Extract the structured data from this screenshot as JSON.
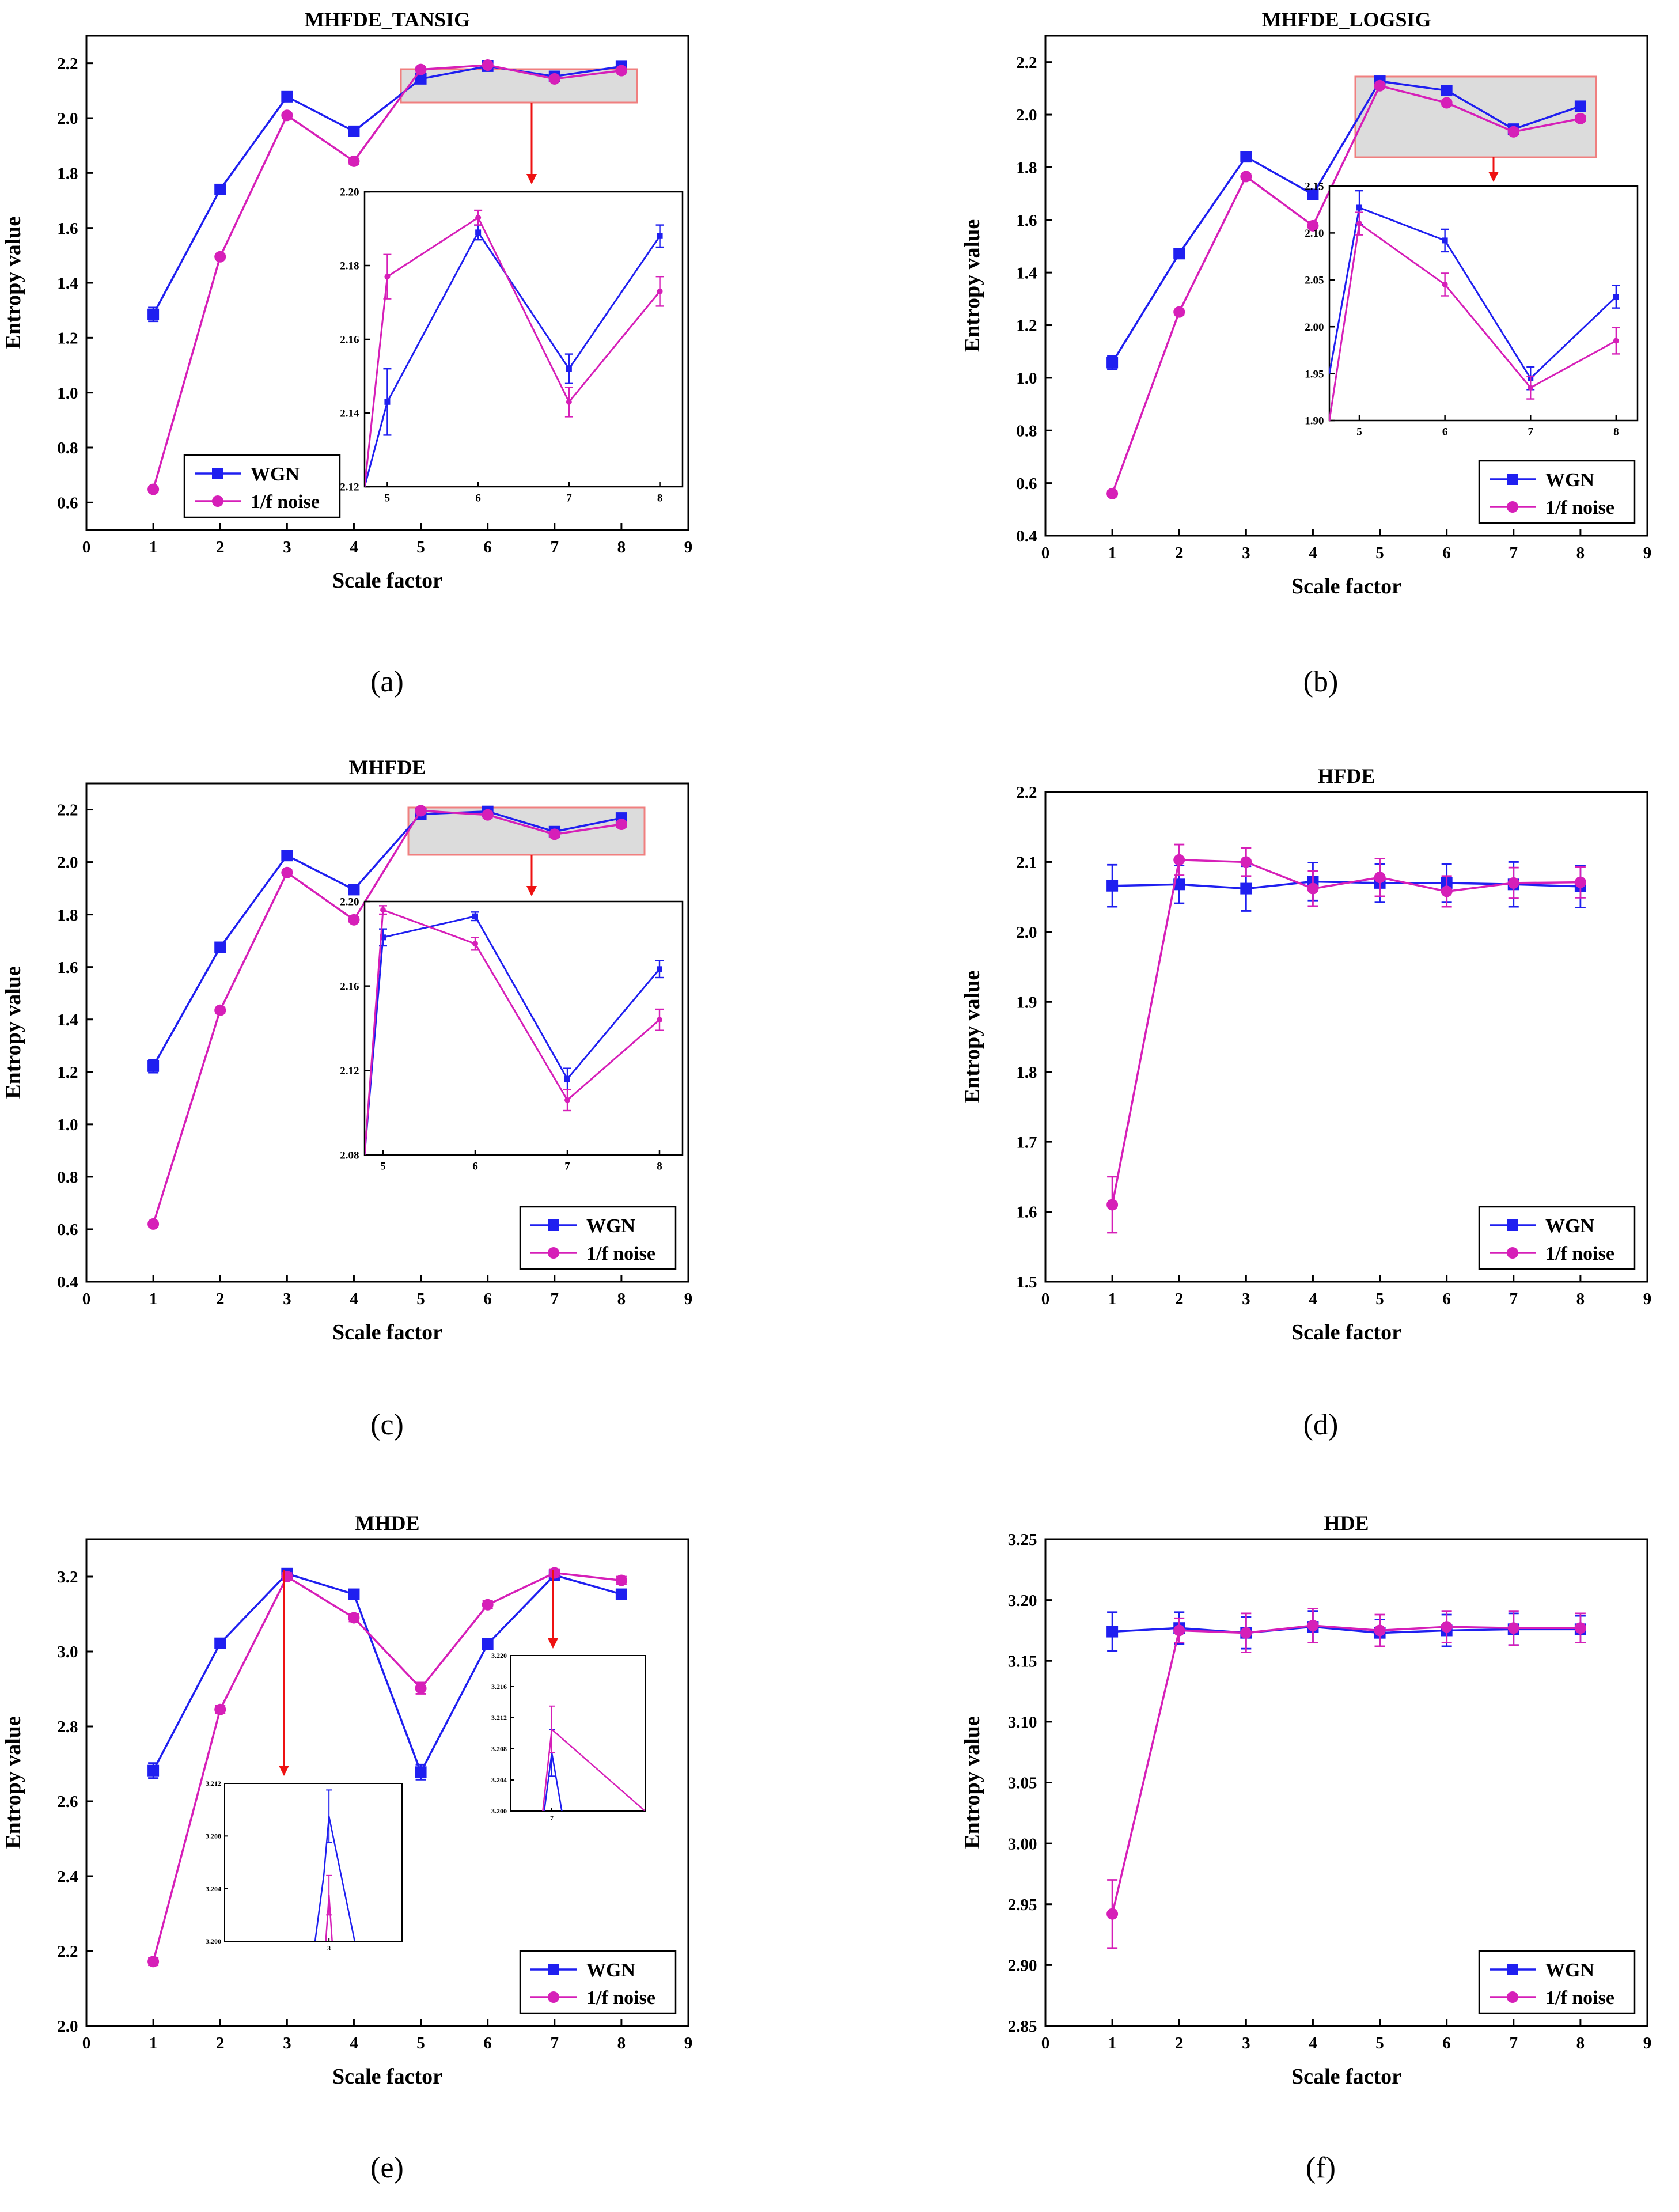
{
  "colors": {
    "wgn": "#1f1ff0",
    "pink": "#d61fb8",
    "axis": "#000000",
    "arrow": "#ee1111",
    "highlight_fill": "#dcdcdc",
    "highlight_stroke": "#f07f7f"
  },
  "legend_labels": [
    "WGN",
    "1/f noise"
  ],
  "chart_data": [
    {
      "id": "a",
      "caption": "(a)",
      "type": "line",
      "title": "MHFDE_TANSIG",
      "xlabel": "Scale factor",
      "ylabel": "Entropy value",
      "xlim": [
        0,
        9
      ],
      "xticks": [
        0,
        1,
        2,
        3,
        4,
        5,
        6,
        7,
        8,
        9
      ],
      "ylim": [
        0.5,
        2.3
      ],
      "yticks": [
        0.6,
        0.8,
        1.0,
        1.2,
        1.4,
        1.6,
        1.8,
        2.0,
        2.2
      ],
      "ydec": 1,
      "legend": "bottom-left",
      "series": [
        {
          "name": "WGN",
          "x": [
            1,
            2,
            3,
            4,
            5,
            6,
            7,
            8
          ],
          "values": [
            1.285,
            1.74,
            2.078,
            1.952,
            2.143,
            2.189,
            2.152,
            2.188
          ],
          "err": [
            0.025,
            0.018,
            0.01,
            0.01,
            0.01,
            0.005,
            0.005,
            0.005
          ]
        },
        {
          "name": "1/f noise",
          "x": [
            1,
            2,
            3,
            4,
            5,
            6,
            7,
            8
          ],
          "values": [
            0.648,
            1.495,
            2.01,
            1.843,
            2.177,
            2.193,
            2.143,
            2.173
          ],
          "err": [
            0.01,
            0.01,
            0.01,
            0.01,
            0.01,
            0.005,
            0.005,
            0.005
          ]
        }
      ],
      "inset": {
        "xlim": [
          4.75,
          8.25
        ],
        "xticks": [
          5,
          6,
          7,
          8
        ],
        "ylim": [
          2.12,
          2.2
        ],
        "yticks": [
          2.12,
          2.14,
          2.16,
          2.18,
          2.2
        ],
        "ydec": 2,
        "series": [
          {
            "name": "WGN",
            "x": [
              4.75,
              5,
              6,
              7,
              8
            ],
            "values": [
              2.12,
              2.143,
              2.189,
              2.152,
              2.188
            ],
            "err": [
              0,
              0.009,
              0.002,
              0.004,
              0.003
            ]
          },
          {
            "name": "1/f noise",
            "x": [
              4.75,
              5,
              6,
              7,
              8
            ],
            "values": [
              2.12,
              2.177,
              2.193,
              2.143,
              2.173
            ],
            "err": [
              0,
              0.006,
              0.002,
              0.004,
              0.004
            ]
          }
        ]
      }
    },
    {
      "id": "b",
      "caption": "(b)",
      "type": "line",
      "title": "MHFDE_LOGSIG",
      "xlabel": "Scale factor",
      "ylabel": "Entropy value",
      "xlim": [
        0,
        9
      ],
      "xticks": [
        0,
        1,
        2,
        3,
        4,
        5,
        6,
        7,
        8,
        9
      ],
      "ylim": [
        0.4,
        2.3
      ],
      "yticks": [
        0.4,
        0.6,
        0.8,
        1.0,
        1.2,
        1.4,
        1.6,
        1.8,
        2.0,
        2.2
      ],
      "ydec": 1,
      "legend": "bottom-right",
      "series": [
        {
          "name": "WGN",
          "x": [
            1,
            2,
            3,
            4,
            5,
            6,
            7,
            8
          ],
          "values": [
            1.058,
            1.472,
            1.84,
            1.697,
            2.127,
            2.092,
            1.945,
            2.032
          ],
          "err": [
            0.025,
            0.01,
            0.01,
            0.01,
            0.01,
            0.01,
            0.01,
            0.01
          ]
        },
        {
          "name": "1/f noise",
          "x": [
            1,
            2,
            3,
            4,
            5,
            6,
            7,
            8
          ],
          "values": [
            0.56,
            1.25,
            1.765,
            1.578,
            2.11,
            2.045,
            1.935,
            1.985
          ],
          "err": [
            0.01,
            0.01,
            0.01,
            0.01,
            0.01,
            0.01,
            0.01,
            0.01
          ]
        }
      ],
      "inset": {
        "xlim": [
          4.65,
          8.25
        ],
        "xticks": [
          5,
          6,
          7,
          8
        ],
        "ylim": [
          1.9,
          2.15
        ],
        "yticks": [
          1.9,
          1.95,
          2.0,
          2.05,
          2.1,
          2.15
        ],
        "ydec": 2,
        "series": [
          {
            "name": "WGN",
            "x": [
              4.65,
              5,
              6,
              7,
              8
            ],
            "values": [
              1.95,
              2.127,
              2.092,
              1.945,
              2.032
            ],
            "err": [
              0,
              0.018,
              0.012,
              0.012,
              0.012
            ]
          },
          {
            "name": "1/f noise",
            "x": [
              4.65,
              5,
              6,
              7,
              8
            ],
            "values": [
              1.9,
              2.11,
              2.045,
              1.935,
              1.985
            ],
            "err": [
              0,
              0.012,
              0.012,
              0.012,
              0.014
            ]
          }
        ]
      }
    },
    {
      "id": "c",
      "caption": "(c)",
      "type": "line",
      "title": "MHFDE",
      "xlabel": "Scale factor",
      "ylabel": "Entropy value",
      "xlim": [
        0,
        9
      ],
      "xticks": [
        0,
        1,
        2,
        3,
        4,
        5,
        6,
        7,
        8,
        9
      ],
      "ylim": [
        0.4,
        2.3
      ],
      "yticks": [
        0.4,
        0.6,
        0.8,
        1.0,
        1.2,
        1.4,
        1.6,
        1.8,
        2.0,
        2.2
      ],
      "ydec": 1,
      "legend": "bottom-right",
      "series": [
        {
          "name": "WGN",
          "x": [
            1,
            2,
            3,
            4,
            5,
            6,
            7,
            8
          ],
          "values": [
            1.222,
            1.675,
            2.025,
            1.895,
            2.183,
            2.193,
            2.116,
            2.168
          ],
          "err": [
            0.025,
            0.01,
            0.01,
            0.01,
            0.01,
            0.01,
            0.01,
            0.01
          ]
        },
        {
          "name": "1/f noise",
          "x": [
            1,
            2,
            3,
            4,
            5,
            6,
            7,
            8
          ],
          "values": [
            0.62,
            1.435,
            1.96,
            1.78,
            2.196,
            2.18,
            2.106,
            2.144
          ],
          "err": [
            0.01,
            0.01,
            0.01,
            0.01,
            0.01,
            0.01,
            0.01,
            0.01
          ]
        }
      ],
      "inset": {
        "xlim": [
          4.8,
          8.25
        ],
        "xticks": [
          5,
          6,
          7,
          8
        ],
        "ylim": [
          2.08,
          2.2
        ],
        "yticks": [
          2.08,
          2.12,
          2.16,
          2.2
        ],
        "ydec": 2,
        "series": [
          {
            "name": "WGN",
            "x": [
              4.8,
              5,
              6,
              7,
              8
            ],
            "values": [
              2.08,
              2.183,
              2.193,
              2.116,
              2.168
            ],
            "err": [
              0,
              0.004,
              0.002,
              0.005,
              0.004
            ]
          },
          {
            "name": "1/f noise",
            "x": [
              4.8,
              5,
              6,
              7,
              8
            ],
            "values": [
              2.08,
              2.196,
              2.18,
              2.106,
              2.144
            ],
            "err": [
              0,
              0.002,
              0.003,
              0.005,
              0.005
            ]
          }
        ]
      }
    },
    {
      "id": "d",
      "caption": "(d)",
      "type": "line",
      "title": "HFDE",
      "xlabel": "Scale factor",
      "ylabel": "Entropy value",
      "xlim": [
        0,
        9
      ],
      "xticks": [
        0,
        1,
        2,
        3,
        4,
        5,
        6,
        7,
        8,
        9
      ],
      "ylim": [
        1.5,
        2.2
      ],
      "yticks": [
        1.5,
        1.6,
        1.7,
        1.8,
        1.9,
        2.0,
        2.1,
        2.2
      ],
      "ydec": 1,
      "legend": "bottom-right",
      "series": [
        {
          "name": "WGN",
          "x": [
            1,
            2,
            3,
            4,
            5,
            6,
            7,
            8
          ],
          "values": [
            2.066,
            2.068,
            2.062,
            2.072,
            2.07,
            2.07,
            2.068,
            2.065
          ],
          "err": [
            0.03,
            0.027,
            0.032,
            0.027,
            0.027,
            0.027,
            0.032,
            0.03
          ]
        },
        {
          "name": "1/f noise",
          "x": [
            1,
            2,
            3,
            4,
            5,
            6,
            7,
            8
          ],
          "values": [
            1.61,
            2.103,
            2.1,
            2.062,
            2.078,
            2.058,
            2.07,
            2.071
          ],
          "err": [
            0.04,
            0.022,
            0.02,
            0.025,
            0.027,
            0.022,
            0.022,
            0.022
          ]
        }
      ]
    },
    {
      "id": "e",
      "caption": "(e)",
      "type": "line",
      "title": "MHDE",
      "xlabel": "Scale factor",
      "ylabel": "Entropy value",
      "xlim": [
        0,
        9
      ],
      "xticks": [
        0,
        1,
        2,
        3,
        4,
        5,
        6,
        7,
        8,
        9
      ],
      "ylim": [
        2.0,
        3.3
      ],
      "yticks": [
        2.0,
        2.2,
        2.4,
        2.6,
        2.8,
        3.0,
        3.2
      ],
      "ydec": 1,
      "legend": "bottom-right",
      "series": [
        {
          "name": "WGN",
          "x": [
            1,
            2,
            3,
            4,
            5,
            6,
            7,
            8
          ],
          "values": [
            2.682,
            3.022,
            3.208,
            3.153,
            2.678,
            3.02,
            3.204,
            3.153
          ],
          "err": [
            0.02,
            0.01,
            0.01,
            0.01,
            0.02,
            0.01,
            0.01,
            0.01
          ]
        },
        {
          "name": "1/f noise",
          "x": [
            1,
            2,
            3,
            4,
            5,
            6,
            7,
            8
          ],
          "values": [
            2.172,
            2.845,
            3.2,
            3.09,
            2.902,
            3.125,
            3.21,
            3.19
          ],
          "err": [
            0.01,
            0.01,
            0.01,
            0.01,
            0.015,
            0.01,
            0.01,
            0.01
          ]
        }
      ],
      "insets": [
        {
          "xlim": [
            2.0,
            3.7
          ],
          "xticks": [
            3
          ],
          "ylim": [
            3.2,
            3.212
          ],
          "yticks": [
            3.2,
            3.204,
            3.208,
            3.212
          ],
          "ydec": 3,
          "series": [
            {
              "name": "WGN",
              "x": [
                2.8,
                2.95,
                3,
                3.35
              ],
              "values": [
                3.196,
                3.205,
                3.2095,
                3.196
              ],
              "err": [
                0,
                0,
                0.002,
                0
              ]
            },
            {
              "name": "1/f noise",
              "x": [
                2.9,
                3,
                3.1
              ],
              "values": [
                3.192,
                3.2035,
                3.192
              ],
              "err": [
                0,
                0.0015,
                0
              ]
            }
          ]
        },
        {
          "xlim": [
            6.6,
            7.9
          ],
          "xticks": [
            7
          ],
          "ylim": [
            3.2,
            3.22
          ],
          "yticks": [
            3.2,
            3.204,
            3.208,
            3.212,
            3.216,
            3.22
          ],
          "ydec": 3,
          "series": [
            {
              "name": "WGN",
              "x": [
                6.85,
                7,
                7.2
              ],
              "values": [
                3.192,
                3.2075,
                3.192
              ],
              "err": [
                0,
                0.003,
                0
              ]
            },
            {
              "name": "1/f noise",
              "x": [
                6.88,
                7,
                7.9
              ],
              "values": [
                3.196,
                3.2105,
                3.2
              ],
              "err": [
                0,
                0.003,
                0
              ]
            }
          ]
        }
      ]
    },
    {
      "id": "f",
      "caption": "(f)",
      "type": "line",
      "title": "HDE",
      "xlabel": "Scale factor",
      "ylabel": "Entropy value",
      "xlim": [
        0,
        9
      ],
      "xticks": [
        0,
        1,
        2,
        3,
        4,
        5,
        6,
        7,
        8,
        9
      ],
      "ylim": [
        2.85,
        3.25
      ],
      "yticks": [
        2.85,
        2.9,
        2.95,
        3.0,
        3.05,
        3.1,
        3.15,
        3.2,
        3.25
      ],
      "ydec": 2,
      "legend": "bottom-right",
      "series": [
        {
          "name": "WGN",
          "x": [
            1,
            2,
            3,
            4,
            5,
            6,
            7,
            8
          ],
          "values": [
            3.174,
            3.177,
            3.173,
            3.178,
            3.173,
            3.175,
            3.176,
            3.176
          ],
          "err": [
            0.016,
            0.013,
            0.013,
            0.013,
            0.011,
            0.013,
            0.013,
            0.011
          ]
        },
        {
          "name": "1/f noise",
          "x": [
            1,
            2,
            3,
            4,
            5,
            6,
            7,
            8
          ],
          "values": [
            2.942,
            3.175,
            3.173,
            3.179,
            3.175,
            3.178,
            3.177,
            3.177
          ],
          "err": [
            0.028,
            0.01,
            0.016,
            0.014,
            0.013,
            0.013,
            0.014,
            0.012
          ]
        }
      ]
    }
  ]
}
